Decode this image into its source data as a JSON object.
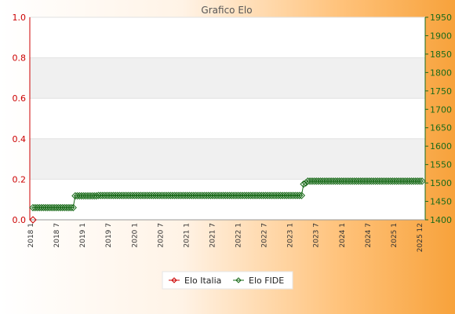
{
  "chart_data": {
    "type": "line",
    "title": "Grafico Elo",
    "y_left": {
      "ylim": [
        0.0,
        1.0
      ],
      "ticks": [
        "0.0",
        "0.2",
        "0.4",
        "0.6",
        "0.8",
        "1.0"
      ],
      "color": "#cc0000"
    },
    "y_right": {
      "ylim": [
        1400,
        1950
      ],
      "ticks": [
        "1400",
        "1450",
        "1500",
        "1550",
        "1600",
        "1650",
        "1700",
        "1750",
        "1800",
        "1850",
        "1900",
        "1950"
      ],
      "color": "#1a6b1a"
    },
    "x_labels": [
      "2018 1",
      "2018 7",
      "2019 1",
      "2019 7",
      "2020 1",
      "2020 7",
      "2021 1",
      "2021 7",
      "2022 1",
      "2022 7",
      "2023 1",
      "2023 7",
      "2024 1",
      "2024 7",
      "2025 1",
      "2025 12"
    ],
    "grid": true,
    "legend_position": "bottom",
    "series": [
      {
        "name": "Elo Italia",
        "axis": "left",
        "color": "#cc0000",
        "values": [
          0
        ]
      },
      {
        "name": "Elo FIDE",
        "axis": "right",
        "color": "#1a6b1a",
        "values": [
          1433,
          1433,
          1433,
          1433,
          1433,
          1433,
          1433,
          1433,
          1433,
          1433,
          1433,
          1433,
          1433,
          1433,
          1433,
          1433,
          1433,
          1433,
          1433,
          1433,
          1465,
          1465,
          1465,
          1465,
          1465,
          1465,
          1465,
          1465,
          1465,
          1465,
          1465,
          1466,
          1466,
          1466,
          1466,
          1466,
          1466,
          1466,
          1466,
          1466,
          1466,
          1466,
          1466,
          1466,
          1466,
          1466,
          1466,
          1466,
          1466,
          1466,
          1466,
          1466,
          1466,
          1466,
          1466,
          1466,
          1466,
          1466,
          1466,
          1466,
          1466,
          1466,
          1466,
          1466,
          1466,
          1466,
          1466,
          1466,
          1466,
          1466,
          1466,
          1466,
          1466,
          1466,
          1466,
          1466,
          1466,
          1466,
          1466,
          1466,
          1466,
          1466,
          1466,
          1466,
          1466,
          1466,
          1466,
          1466,
          1466,
          1466,
          1466,
          1466,
          1466,
          1466,
          1466,
          1466,
          1466,
          1466,
          1466,
          1466,
          1466,
          1466,
          1466,
          1466,
          1466,
          1466,
          1466,
          1466,
          1466,
          1466,
          1466,
          1466,
          1466,
          1466,
          1466,
          1466,
          1466,
          1466,
          1466,
          1466,
          1466,
          1466,
          1466,
          1466,
          1466,
          1466,
          1466,
          1466,
          1497,
          1500,
          1505,
          1505,
          1505,
          1505,
          1505,
          1505,
          1505,
          1505,
          1505,
          1505,
          1505,
          1505,
          1505,
          1505,
          1505,
          1505,
          1505,
          1505,
          1505,
          1505,
          1505,
          1505,
          1505,
          1505,
          1505,
          1505,
          1505,
          1505,
          1505,
          1505,
          1505,
          1505,
          1505,
          1505,
          1505,
          1505,
          1505,
          1505,
          1505,
          1505,
          1505,
          1505,
          1505,
          1505,
          1505,
          1505,
          1505,
          1505,
          1505,
          1505,
          1505,
          1505,
          1505,
          1505,
          1505
        ]
      }
    ]
  }
}
